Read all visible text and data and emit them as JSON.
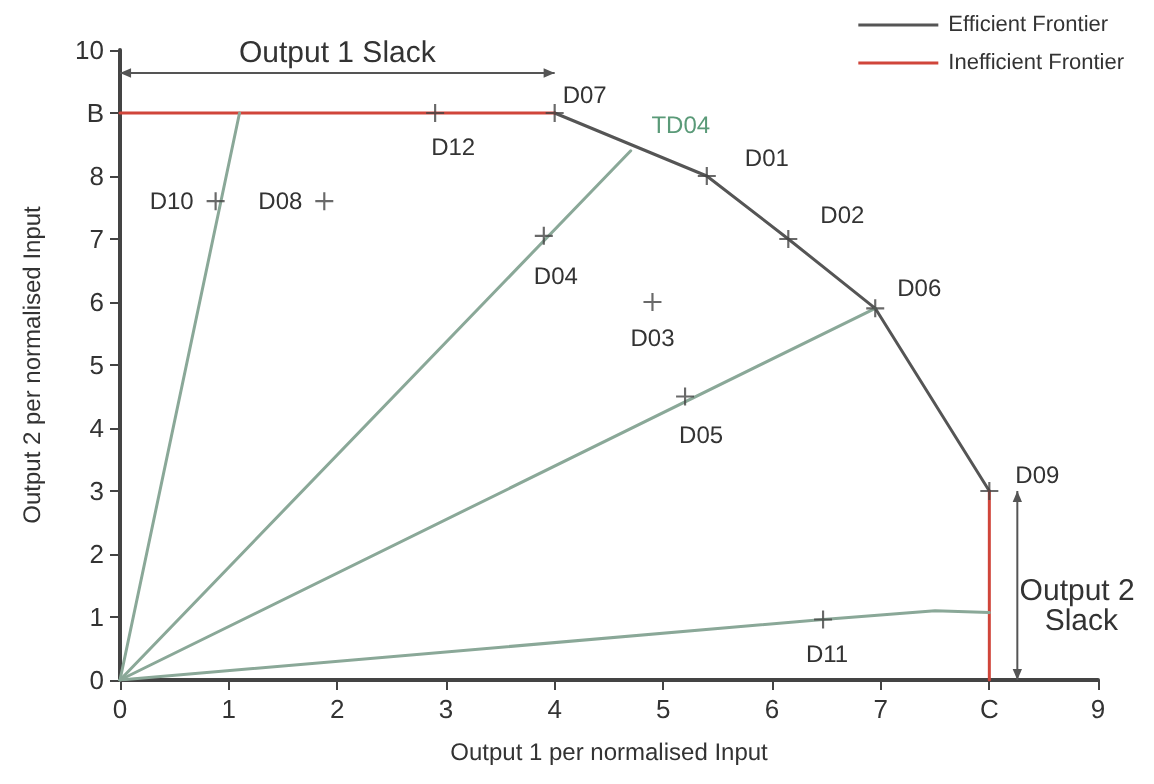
{
  "chart_data": {
    "type": "line",
    "xlabel": "Output 1 per normalised Input",
    "ylabel": "Output 2 per normalised Input",
    "xlim": [
      0,
      9
    ],
    "ylim": [
      0,
      10
    ],
    "xticks": [
      0,
      1,
      2,
      3,
      4,
      5,
      6,
      7,
      {
        "value": 8,
        "label": "C"
      },
      9
    ],
    "yticks": [
      0,
      1,
      2,
      3,
      4,
      5,
      6,
      7,
      8,
      {
        "value": 9,
        "label": "B"
      },
      10
    ],
    "grid": false,
    "legend": "top right",
    "series": [
      {
        "name": "Efficient Frontier",
        "color": "#555555",
        "marker": "none",
        "x": [
          4,
          5.4,
          6.15,
          6.95,
          8
        ],
        "values": [
          9,
          8,
          7,
          5.9,
          3
        ]
      },
      {
        "name": "Inefficient Frontier",
        "color": "#d0453a",
        "marker": "none",
        "x": [
          0,
          4
        ],
        "values": [
          9,
          9
        ]
      },
      {
        "type": "line",
        "color": "#d0453a",
        "marker": "none",
        "x": [
          8,
          8
        ],
        "values": [
          3,
          0
        ]
      },
      {
        "type": "line",
        "color": "#8aa898",
        "marker": "none",
        "x": [
          0,
          1.1
        ],
        "values": [
          0,
          9
        ]
      },
      {
        "type": "line",
        "color": "#8aa898",
        "marker": "none",
        "x": [
          0,
          4.7
        ],
        "values": [
          0,
          8.4
        ]
      },
      {
        "type": "line",
        "color": "#8aa898",
        "marker": "none",
        "x": [
          0,
          6.95
        ],
        "values": [
          0,
          5.9
        ]
      },
      {
        "type": "line",
        "color": "#8aa898",
        "marker": "none",
        "x": [
          0,
          6.47,
          7.5,
          8
        ],
        "values": [
          0,
          0.96,
          1.1,
          1.07
        ]
      },
      {
        "type": "scatter",
        "color": "#444444",
        "marker": "cross",
        "x": [
          5.4,
          6.15,
          4.9,
          3.9,
          5.2,
          6.95,
          4,
          1.88,
          8,
          0.88,
          6.47,
          2.9
        ],
        "values": [
          8,
          7,
          6,
          7.05,
          4.5,
          5.9,
          9,
          7.6,
          3,
          7.6,
          0.96,
          9
        ]
      }
    ],
    "annotations": [
      {
        "text": "D01",
        "x": 5.4,
        "y": 8
      },
      {
        "text": "D02",
        "x": 6.15,
        "y": 7
      },
      {
        "text": "D03",
        "x": 4.9,
        "y": 6
      },
      {
        "text": "D04",
        "x": 3.9,
        "y": 7.05
      },
      {
        "text": "D05",
        "x": 5.2,
        "y": 4.5
      },
      {
        "text": "D06",
        "x": 6.95,
        "y": 5.9
      },
      {
        "text": "D07",
        "x": 4,
        "y": 9
      },
      {
        "text": "D08",
        "x": 1.88,
        "y": 7.6
      },
      {
        "text": "D09",
        "x": 8,
        "y": 3
      },
      {
        "text": "D10",
        "x": 0.88,
        "y": 7.6
      },
      {
        "text": "D11",
        "x": 6.47,
        "y": 0.96
      },
      {
        "text": "D12",
        "x": 2.9,
        "y": 9
      },
      {
        "text": "TD04",
        "x": 4.7,
        "y": 8.4
      },
      "Output 1 Slack",
      "Output 2 Slack"
    ]
  }
}
